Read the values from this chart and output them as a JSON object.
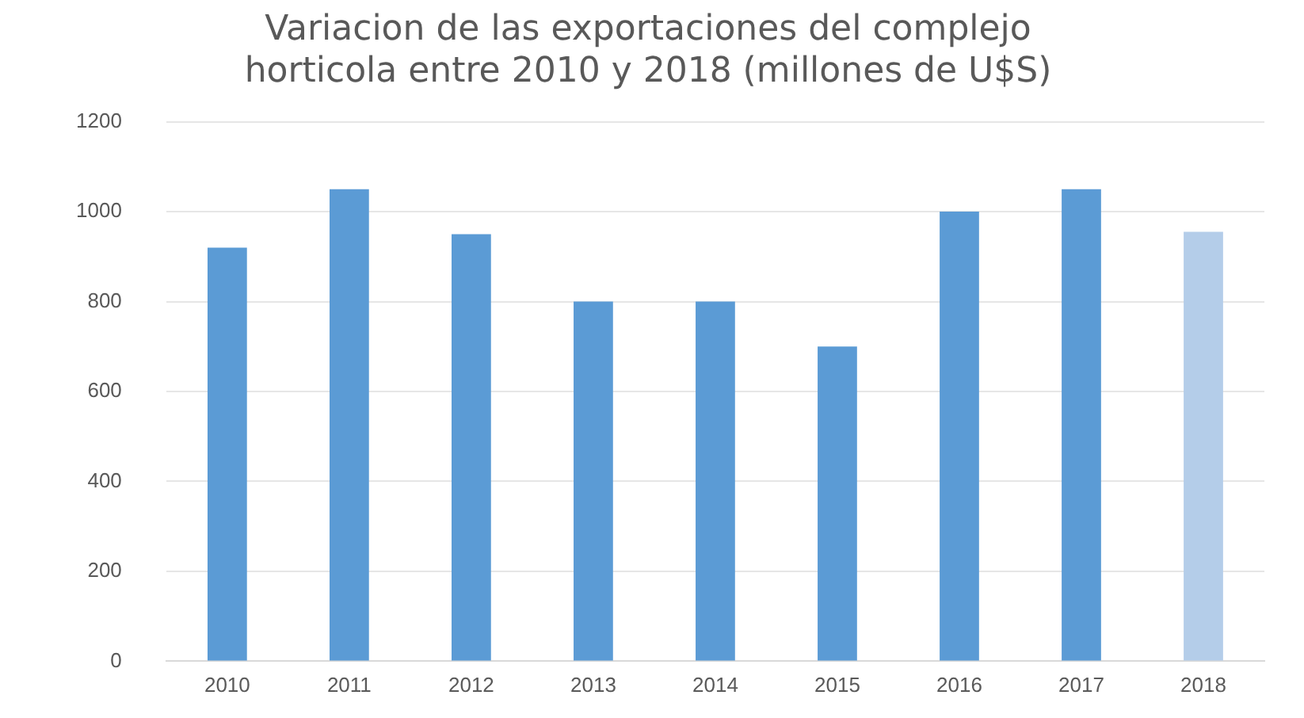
{
  "chart_data": {
    "type": "bar",
    "title": [
      "Variacion de las exportaciones del complejo",
      "horticola entre 2010 y 2018 (millones de U$S)"
    ],
    "categories": [
      "2010",
      "2011",
      "2012",
      "2013",
      "2014",
      "2015",
      "2016",
      "2017",
      "2018"
    ],
    "values": [
      920,
      1050,
      950,
      800,
      800,
      700,
      1000,
      1050,
      955
    ],
    "colors": [
      "#5b9bd5",
      "#5b9bd5",
      "#5b9bd5",
      "#5b9bd5",
      "#5b9bd5",
      "#5b9bd5",
      "#5b9bd5",
      "#5b9bd5",
      "#b4cde9"
    ],
    "ylim": [
      0,
      1200
    ],
    "yticks": [
      0,
      200,
      400,
      600,
      800,
      1000,
      1200
    ],
    "grid": "y",
    "legend": false
  }
}
